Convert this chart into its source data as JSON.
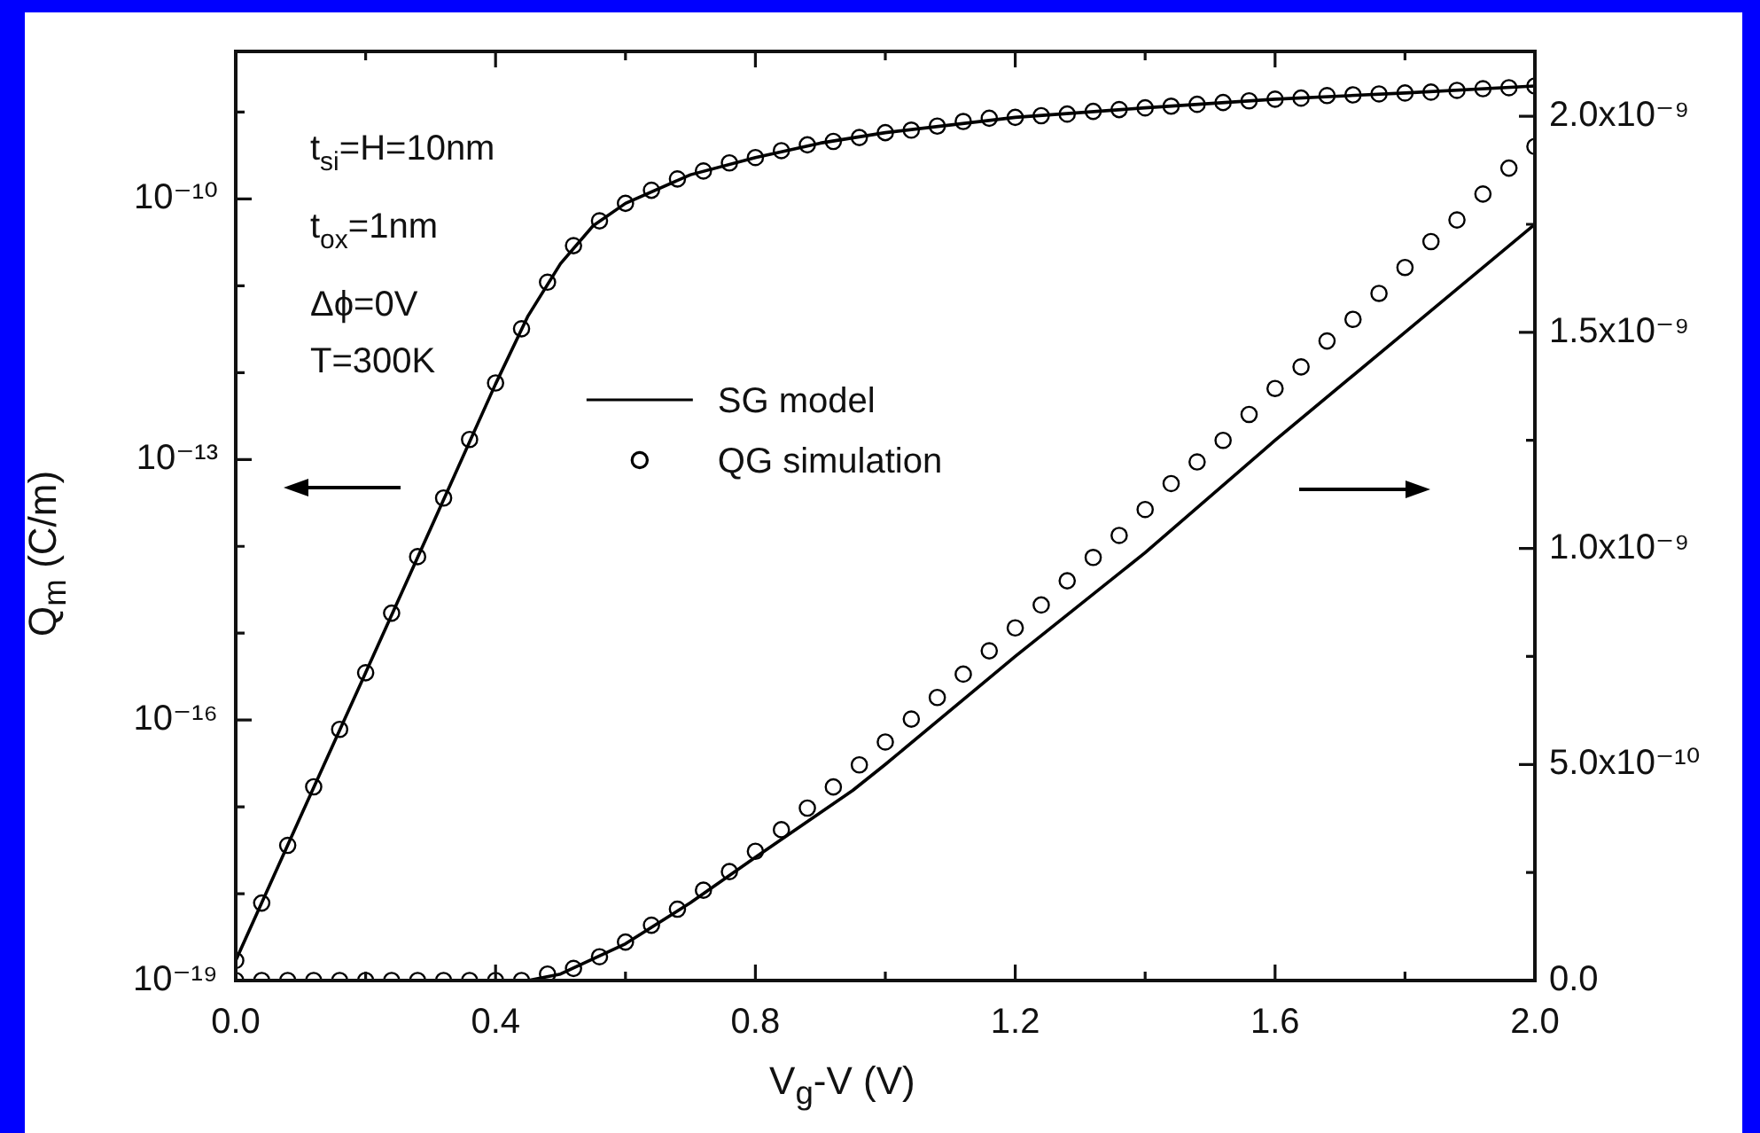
{
  "chart_data": {
    "type": "line",
    "xlabel": "V$_{g}$-V (V)",
    "ylabel": "Q$_{m}$ (C/m)",
    "annotations": [
      "t$_{si}$=H=10nm",
      "t$_{ox}$=1nm",
      "Δϕ=0V",
      "T=300K"
    ],
    "xlim": [
      0,
      2.0
    ],
    "ylim": [
      1e-19,
      5e-09
    ],
    "y2lim": [
      0,
      2.15e-09
    ],
    "log": "y",
    "legend": "center",
    "line_style": "solid",
    "xticks": [
      {
        "value": 0,
        "label": "0.0"
      },
      {
        "value": 0.2,
        "label": null
      },
      {
        "value": 0.4,
        "label": "0.4"
      },
      {
        "value": 0.6,
        "label": null
      },
      {
        "value": 0.8,
        "label": "0.8"
      },
      {
        "value": 1.0,
        "label": null
      },
      {
        "value": 1.2,
        "label": "1.2"
      },
      {
        "value": 1.4,
        "label": null
      },
      {
        "value": 1.6,
        "label": "1.6"
      },
      {
        "value": 1.8,
        "label": null
      },
      {
        "value": 2.0,
        "label": "2.0"
      }
    ],
    "yticks": [
      {
        "value": 1e-19,
        "label": "10⁻¹⁹"
      },
      {
        "value": 1e-18,
        "label": null
      },
      {
        "value": 1e-17,
        "label": null
      },
      {
        "value": 1e-16,
        "label": "10⁻¹⁶"
      },
      {
        "value": 1e-15,
        "label": null
      },
      {
        "value": 1e-14,
        "label": null
      },
      {
        "value": 1e-13,
        "label": "10⁻¹³"
      },
      {
        "value": 1e-12,
        "label": null
      },
      {
        "value": 1e-11,
        "label": null
      },
      {
        "value": 1e-10,
        "label": "10⁻¹⁰"
      },
      {
        "value": 1e-09,
        "label": null
      }
    ],
    "y2ticks": [
      {
        "value": 0,
        "label": "0.0"
      },
      {
        "value": 2.5e-10,
        "label": null
      },
      {
        "value": 5e-10,
        "label": "5.0x10⁻¹⁰"
      },
      {
        "value": 7.5e-10,
        "label": null
      },
      {
        "value": 1e-09,
        "label": "1.0x10⁻⁹"
      },
      {
        "value": 1.25e-09,
        "label": null
      },
      {
        "value": 1.5e-09,
        "label": "1.5x10⁻⁹"
      },
      {
        "value": 1.75e-09,
        "label": null
      },
      {
        "value": 2e-09,
        "label": "2.0x10⁻⁹"
      }
    ],
    "series": [
      {
        "name": "SG model",
        "marker": "none",
        "color": "#000000",
        "x": [
          0,
          0.1,
          0.2,
          0.3,
          0.4,
          0.45,
          0.5,
          0.55,
          0.6,
          0.7,
          0.8,
          0.9,
          1.0,
          1.2,
          1.4,
          1.6,
          1.8,
          2.0
        ],
        "values": [
          1.7e-19,
          7.8e-18,
          3.5e-16,
          1.6e-14,
          7.4e-13,
          4.5e-12,
          1.8e-11,
          4.9e-11,
          8.9e-11,
          1.9e-10,
          3e-10,
          4.4e-10,
          5.8e-10,
          8.7e-10,
          1.12e-09,
          1.41e-09,
          1.66e-09,
          2e-09
        ]
      },
      {
        "name": "QG simulation",
        "type": "scatter",
        "marker": "circle",
        "color": "#000000",
        "x": [
          0,
          0.04,
          0.08,
          0.12,
          0.16,
          0.2,
          0.24,
          0.28,
          0.32,
          0.36,
          0.4,
          0.44,
          0.48,
          0.52,
          0.56,
          0.6,
          0.64,
          0.68,
          0.72,
          0.76,
          0.8,
          0.84,
          0.88,
          0.92,
          0.96,
          1.0,
          1.04,
          1.08,
          1.12,
          1.16,
          1.2,
          1.24,
          1.28,
          1.32,
          1.36,
          1.4,
          1.44,
          1.48,
          1.52,
          1.56,
          1.6,
          1.64,
          1.68,
          1.72,
          1.76,
          1.8,
          1.84,
          1.88,
          1.92,
          1.96,
          2.0
        ],
        "values": [
          1.7e-19,
          7.8e-19,
          3.6e-18,
          1.7e-17,
          7.8e-17,
          3.5e-16,
          1.7e-15,
          7.6e-15,
          3.6e-14,
          1.7e-13,
          7.6e-13,
          3.2e-12,
          1.1e-11,
          2.9e-11,
          5.6e-11,
          8.9e-11,
          1.26e-10,
          1.7e-10,
          2.1e-10,
          2.6e-10,
          3e-10,
          3.6e-10,
          4.2e-10,
          4.6e-10,
          5.1e-10,
          5.8e-10,
          6.2e-10,
          6.9e-10,
          7.8e-10,
          8.5e-10,
          8.7e-10,
          9.1e-10,
          9.5e-10,
          1.02e-09,
          1.07e-09,
          1.12e-09,
          1.17e-09,
          1.23e-09,
          1.29e-09,
          1.35e-09,
          1.41e-09,
          1.45e-09,
          1.55e-09,
          1.58e-09,
          1.62e-09,
          1.66e-09,
          1.7e-09,
          1.78e-09,
          1.86e-09,
          1.91e-09,
          2e-09
        ]
      },
      {
        "axis": "y2",
        "marker": "none",
        "color": "#000000",
        "x": [
          0,
          0.45,
          0.5,
          0.6,
          0.7,
          0.8,
          0.95,
          1.0,
          1.2,
          1.4,
          1.6,
          1.8,
          2.0
        ],
        "values": [
          0,
          0,
          1.5e-11,
          8.5e-11,
          1.8e-10,
          2.85e-10,
          4.4e-10,
          5e-10,
          7.5e-10,
          9.9e-10,
          1.25e-09,
          1.5e-09,
          1.75e-09
        ]
      },
      {
        "type": "scatter",
        "axis": "y2",
        "marker": "circle",
        "color": "#000000",
        "x": [
          0,
          0.04,
          0.08,
          0.12,
          0.16,
          0.2,
          0.24,
          0.28,
          0.32,
          0.36,
          0.4,
          0.44,
          0.48,
          0.52,
          0.56,
          0.6,
          0.64,
          0.68,
          0.72,
          0.76,
          0.8,
          0.84,
          0.88,
          0.92,
          0.96,
          1.0,
          1.04,
          1.08,
          1.12,
          1.16,
          1.2,
          1.24,
          1.28,
          1.32,
          1.36,
          1.4,
          1.44,
          1.48,
          1.52,
          1.56,
          1.6,
          1.64,
          1.68,
          1.72,
          1.76,
          1.8,
          1.84,
          1.88,
          1.92,
          1.96,
          2.0
        ],
        "values": [
          0,
          0,
          0,
          0,
          0,
          0,
          0,
          0,
          0,
          0,
          0,
          0,
          1.5e-11,
          2.8e-11,
          5.5e-11,
          8.9e-11,
          1.28e-10,
          1.65e-10,
          2.09e-10,
          2.52e-10,
          2.99e-10,
          3.49e-10,
          3.99e-10,
          4.48e-10,
          4.99e-10,
          5.52e-10,
          6.05e-10,
          6.55e-10,
          7.09e-10,
          7.63e-10,
          8.16e-10,
          8.69e-10,
          9.25e-10,
          9.79e-10,
          1.03e-09,
          1.09e-09,
          1.15e-09,
          1.2e-09,
          1.25e-09,
          1.31e-09,
          1.37e-09,
          1.42e-09,
          1.48e-09,
          1.53e-09,
          1.59e-09,
          1.65e-09,
          1.71e-09,
          1.76e-09,
          1.82e-09,
          1.88e-09,
          1.93e-09
        ]
      }
    ]
  }
}
